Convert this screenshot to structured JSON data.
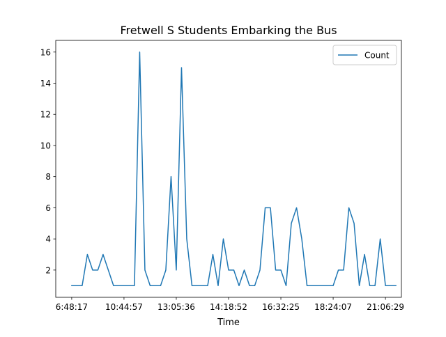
{
  "chart_data": {
    "type": "line",
    "title": "Fretwell S Students Embarking the Bus",
    "xlabel": "Time",
    "ylabel": "",
    "ylim": [
      0.25,
      16.75
    ],
    "xlim": [
      -3.05,
      63.05
    ],
    "grid": false,
    "legend_position": "top-right",
    "x_tick_labels": [
      {
        "index": 0,
        "label": "6:48:17"
      },
      {
        "index": 10,
        "label": "10:44:57"
      },
      {
        "index": 20,
        "label": "13:05:36"
      },
      {
        "index": 30,
        "label": "14:18:52"
      },
      {
        "index": 40,
        "label": "16:32:25"
      },
      {
        "index": 50,
        "label": "18:24:07"
      },
      {
        "index": 60,
        "label": "21:06:29"
      }
    ],
    "y_ticks": [
      2,
      4,
      6,
      8,
      10,
      12,
      14,
      16
    ],
    "series": [
      {
        "name": "Count",
        "color": "#1f77b4",
        "values": [
          1,
          1,
          1,
          3,
          2,
          2,
          3,
          2,
          1,
          1,
          1,
          1,
          1,
          16,
          2,
          1,
          1,
          1,
          2,
          8,
          2,
          15,
          4,
          1,
          1,
          1,
          1,
          3,
          1,
          4,
          2,
          2,
          1,
          2,
          1,
          1,
          2,
          6,
          6,
          2,
          2,
          1,
          5,
          6,
          4,
          1,
          1,
          1,
          1,
          1,
          1,
          2,
          2,
          6,
          5,
          1,
          3,
          1,
          1,
          4,
          1,
          1,
          1
        ]
      }
    ]
  }
}
